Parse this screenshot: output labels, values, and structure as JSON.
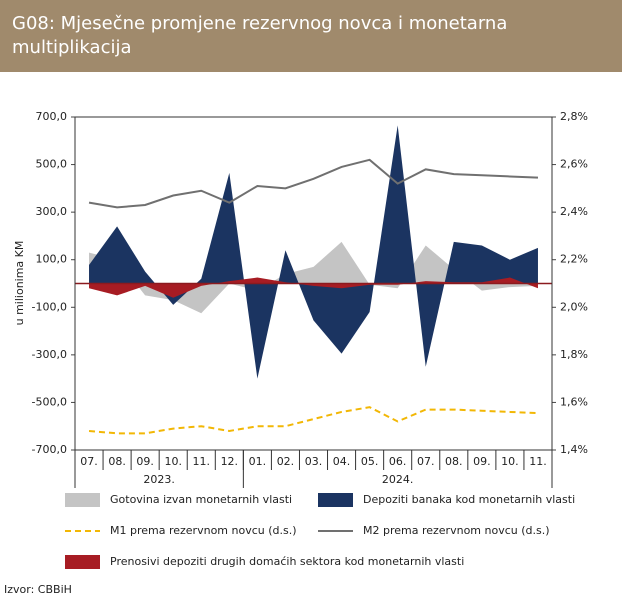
{
  "chart_data": {
    "type": "area",
    "title": "G08: Mjesečne promjene rezervnog novca i monetarna multiplikacija",
    "y_label": "u milionima KM",
    "source": "Izvor: CBBiH",
    "categories": [
      "07.",
      "08.",
      "09.",
      "10.",
      "11.",
      "12.",
      "01.",
      "02.",
      "03.",
      "04.",
      "05.",
      "06.",
      "07.",
      "08.",
      "09.",
      "10.",
      "11."
    ],
    "groups": [
      {
        "label": "2023.",
        "span": 6
      },
      {
        "label": "2024.",
        "span": 11
      }
    ],
    "ylim": [
      -700,
      700
    ],
    "yticks": [
      {
        "value": 700,
        "label": "700,0"
      },
      {
        "value": 500,
        "label": "500,0"
      },
      {
        "value": 300,
        "label": "300,0"
      },
      {
        "value": 100,
        "label": "100,0"
      },
      {
        "value": -100,
        "label": "-100,0"
      },
      {
        "value": -300,
        "label": "-300,0"
      },
      {
        "value": -500,
        "label": "-500,0"
      },
      {
        "value": -700,
        "label": "-700,0"
      }
    ],
    "y2lim": [
      1.4,
      2.8
    ],
    "y2ticks": [
      {
        "value": 2.8,
        "label": "2,8%"
      },
      {
        "value": 2.6,
        "label": "2,6%"
      },
      {
        "value": 2.4,
        "label": "2,4%"
      },
      {
        "value": 2.2,
        "label": "2,2%"
      },
      {
        "value": 2.0,
        "label": "2,0%"
      },
      {
        "value": 1.8,
        "label": "1,8%"
      },
      {
        "value": 1.6,
        "label": "1,6%"
      },
      {
        "value": 1.4,
        "label": "1,4%"
      }
    ],
    "series": [
      {
        "name": "Gotovina izvan monetarnih vlasti",
        "kind": "area",
        "color": "#c4c4c4",
        "values": [
          130,
          100,
          -50,
          -70,
          -125,
          0,
          -30,
          40,
          70,
          175,
          -5,
          -20,
          160,
          60,
          -30,
          -15,
          -10
        ]
      },
      {
        "name": "Depoziti banaka kod monetarnih vlasti",
        "kind": "area",
        "color": "#1b3461",
        "values": [
          78,
          240,
          50,
          -90,
          20,
          465,
          -400,
          140,
          -155,
          -295,
          -120,
          665,
          -350,
          175,
          160,
          100,
          150
        ]
      },
      {
        "name": "M1 prema rezervnom novcu (d.s.)",
        "kind": "line",
        "axis": "y2",
        "dash": true,
        "color": "#f2b705",
        "values": [
          1.48,
          1.47,
          1.47,
          1.49,
          1.5,
          1.48,
          1.5,
          1.5,
          1.53,
          1.56,
          1.58,
          1.52,
          1.57,
          1.57,
          1.565,
          1.56,
          1.555
        ]
      },
      {
        "name": "M2 prema rezervnom novcu (d.s.)",
        "kind": "line",
        "axis": "y2",
        "color": "#707070",
        "values": [
          2.44,
          2.42,
          2.43,
          2.47,
          2.49,
          2.44,
          2.51,
          2.5,
          2.54,
          2.59,
          2.62,
          2.52,
          2.58,
          2.56,
          2.555,
          2.55,
          2.545
        ]
      },
      {
        "name": "Prenosivi depoziti drugih domaćih sektora kod monetarnih vlasti",
        "kind": "area",
        "color": "#a71c23",
        "values": [
          -20,
          -50,
          -10,
          -60,
          -10,
          10,
          25,
          5,
          -10,
          -20,
          -5,
          -5,
          10,
          5,
          5,
          25,
          -20
        ]
      }
    ]
  }
}
